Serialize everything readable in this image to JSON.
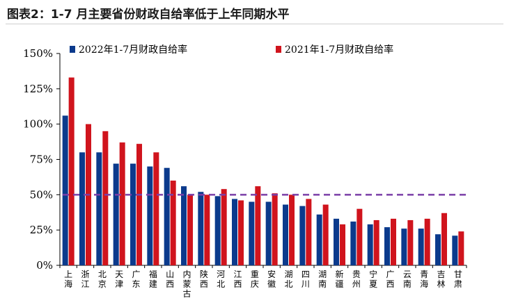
{
  "title": "图表2：1-7 月主要省份财政自给率低于上年同期水平",
  "chart_data": {
    "type": "bar",
    "title": "图表2：1-7 月主要省份财政自给率低于上年同期水平",
    "categories": [
      "上海",
      "浙江",
      "北京",
      "天津",
      "广东",
      "福建",
      "山西",
      "内蒙古",
      "陕西",
      "河北",
      "江西",
      "重庆",
      "安徽",
      "湖北",
      "四川",
      "湖南",
      "新疆",
      "贵州",
      "宁夏",
      "广西",
      "云南",
      "青海",
      "吉林",
      "甘肃"
    ],
    "series": [
      {
        "name": "2022年1-7月财政自给率",
        "color": "#0b3a8c",
        "values": [
          106,
          80,
          80,
          72,
          72,
          70,
          69,
          56,
          52,
          49,
          47,
          45,
          45,
          43,
          42,
          36,
          33,
          31,
          29,
          27,
          26,
          26,
          22,
          21
        ]
      },
      {
        "name": "2021年1-7月财政自给率",
        "color": "#d0141d",
        "values": [
          133,
          100,
          95,
          87,
          86,
          80,
          60,
          50,
          50,
          54,
          46,
          56,
          51,
          50,
          47,
          43,
          29,
          40,
          32,
          33,
          32,
          33,
          37,
          24
        ]
      }
    ],
    "reference_line": {
      "value": 50,
      "color": "#7a3fa8",
      "style": "dashed"
    },
    "yticks": [
      "0%",
      "25%",
      "50%",
      "75%",
      "100%",
      "125%",
      "150%"
    ],
    "ylim": [
      0,
      150
    ],
    "xlabel": "",
    "ylabel": "",
    "legend": "top",
    "grid": false
  }
}
